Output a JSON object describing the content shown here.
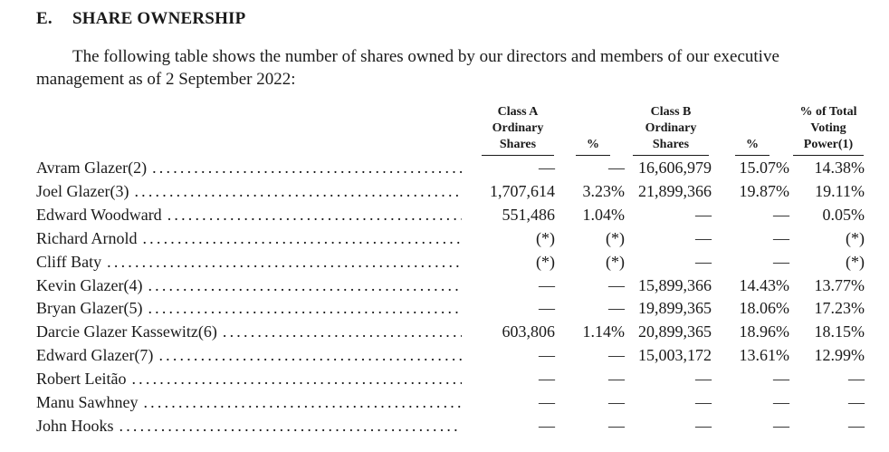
{
  "section": {
    "number": "E.",
    "title": "SHARE OWNERSHIP",
    "intro": "The following table shows the number of shares owned by our directors and members of our executive management as of 2 September 2022:"
  },
  "table": {
    "headers": {
      "class_a_line1": "Class A",
      "class_a_line2": "Ordinary",
      "class_a_line3": "Shares",
      "pct_a": "%",
      "class_b_line1": "Class B",
      "class_b_line2": "Ordinary",
      "class_b_line3": "Shares",
      "pct_b": "%",
      "voting_line1": "% of Total",
      "voting_line2": "Voting",
      "voting_line3": "Power(1)"
    },
    "dots": "........................................................",
    "rows": [
      {
        "name": "Avram Glazer(2)",
        "class_a": "—",
        "pct_a": "—",
        "class_b": "16,606,979",
        "pct_b": "15.07%",
        "voting": "14.38%"
      },
      {
        "name": "Joel Glazer(3)",
        "class_a": "1,707,614",
        "pct_a": "3.23%",
        "class_b": "21,899,366",
        "pct_b": "19.87%",
        "voting": "19.11%"
      },
      {
        "name": "Edward Woodward",
        "class_a": "551,486",
        "pct_a": "1.04%",
        "class_b": "—",
        "pct_b": "—",
        "voting": "0.05%"
      },
      {
        "name": "Richard Arnold",
        "class_a": "(*)",
        "pct_a": "(*)",
        "class_b": "—",
        "pct_b": "—",
        "voting": "(*)"
      },
      {
        "name": "Cliff Baty",
        "class_a": "(*)",
        "pct_a": "(*)",
        "class_b": "—",
        "pct_b": "—",
        "voting": "(*)"
      },
      {
        "name": "Kevin Glazer(4)",
        "class_a": "—",
        "pct_a": "—",
        "class_b": "15,899,366",
        "pct_b": "14.43%",
        "voting": "13.77%"
      },
      {
        "name": "Bryan Glazer(5)",
        "class_a": "—",
        "pct_a": "—",
        "class_b": "19,899,365",
        "pct_b": "18.06%",
        "voting": "17.23%"
      },
      {
        "name": "Darcie Glazer Kassewitz(6)",
        "class_a": "603,806",
        "pct_a": "1.14%",
        "class_b": "20,899,365",
        "pct_b": "18.96%",
        "voting": "18.15%"
      },
      {
        "name": "Edward Glazer(7)",
        "class_a": "—",
        "pct_a": "—",
        "class_b": "15,003,172",
        "pct_b": "13.61%",
        "voting": "12.99%"
      },
      {
        "name": "Robert Leitão",
        "class_a": "—",
        "pct_a": "—",
        "class_b": "—",
        "pct_b": "—",
        "voting": "—"
      },
      {
        "name": "Manu Sawhney",
        "class_a": "—",
        "pct_a": "—",
        "class_b": "—",
        "pct_b": "—",
        "voting": "—"
      },
      {
        "name": "John Hooks",
        "class_a": "—",
        "pct_a": "—",
        "class_b": "—",
        "pct_b": "—",
        "voting": "—"
      }
    ]
  }
}
